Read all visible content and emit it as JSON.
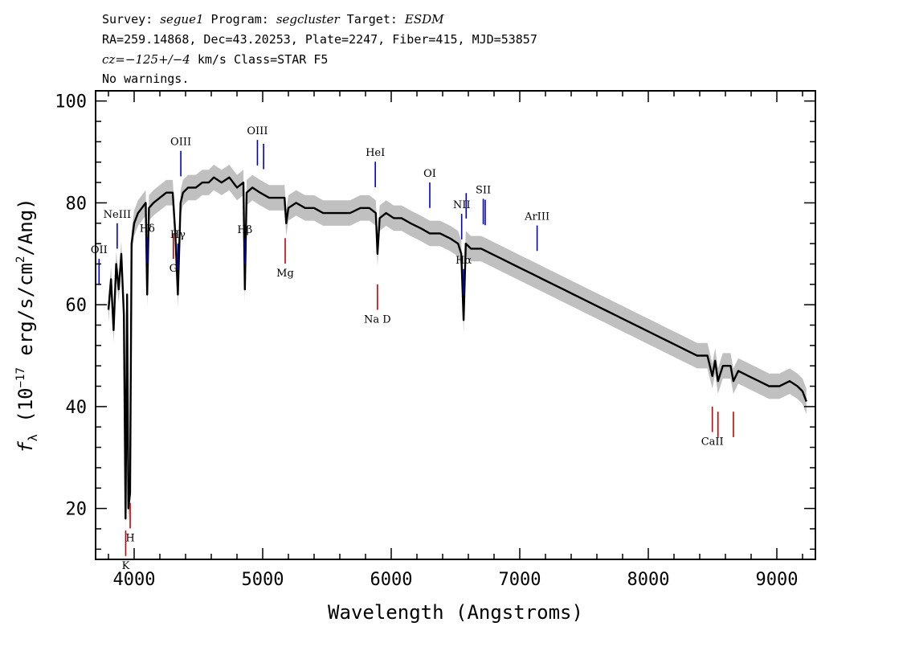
{
  "header": {
    "line1": {
      "survey_label": "Survey:",
      "survey": "segue1",
      "program_label": "Program:",
      "program": "segcluster",
      "target_label": "Target:",
      "target": "ESDM"
    },
    "line2": "RA=259.14868, Dec=43.20253, Plate=2247, Fiber=415, MJD=53857",
    "line3": {
      "cz": "cz=−125+/−4",
      "rest": " km/s Class=STAR F5"
    },
    "line4": "No warnings."
  },
  "chart_data": {
    "type": "line",
    "title": "",
    "xlabel": "Wavelength (Angstroms)",
    "ylabel": {
      "prefix": "f",
      "subscript": "λ",
      "unit_start": " (10",
      "exp1": "−17",
      "unit_mid": " erg/s/cm",
      "exp2": "2",
      "unit_end": "/Ang)"
    },
    "xlim": [
      3700,
      9300
    ],
    "ylim": [
      10,
      102
    ],
    "xticks": [
      4000,
      5000,
      6000,
      7000,
      8000,
      9000
    ],
    "yticks": [
      20,
      40,
      60,
      80,
      100
    ],
    "colors": {
      "flux": "#000000",
      "error_band": "#c0c0c0",
      "emission": "#0000cc",
      "absorption": "#cc0000"
    },
    "series": [
      {
        "kind": "flux",
        "x": [
          3800,
          3820,
          3840,
          3860,
          3880,
          3900,
          3920,
          3933,
          3945,
          3955,
          3968,
          3980,
          4000,
          4030,
          4060,
          4090,
          4101,
          4115,
          4150,
          4200,
          4250,
          4300,
          4320,
          4340,
          4361,
          4380,
          4420,
          4480,
          4530,
          4580,
          4620,
          4680,
          4740,
          4800,
          4850,
          4861,
          4875,
          4920,
          4980,
          5050,
          5120,
          5170,
          5183,
          5200,
          5260,
          5330,
          5400,
          5470,
          5540,
          5600,
          5680,
          5760,
          5830,
          5880,
          5893,
          5910,
          5960,
          6020,
          6080,
          6150,
          6230,
          6300,
          6380,
          6460,
          6520,
          6545,
          6563,
          6580,
          6620,
          6700,
          6780,
          6860,
          6940,
          7020,
          7100,
          7180,
          7260,
          7340,
          7420,
          7500,
          7580,
          7660,
          7740,
          7820,
          7900,
          7980,
          8060,
          8140,
          8220,
          8300,
          8380,
          8460,
          8498,
          8520,
          8542,
          8580,
          8640,
          8662,
          8700,
          8780,
          8860,
          8940,
          9020,
          9100,
          9160,
          9200,
          9230
        ],
        "y": [
          59,
          65,
          55,
          68,
          63,
          70,
          58,
          18,
          62,
          20,
          23,
          72,
          76,
          78,
          79,
          80,
          62,
          79,
          80,
          81,
          82,
          82,
          74,
          62,
          80,
          82,
          83,
          83,
          84,
          84,
          85,
          84,
          85,
          83,
          84,
          63,
          82,
          83,
          82,
          81,
          81,
          81,
          76,
          79,
          80,
          79,
          79,
          78,
          78,
          78,
          78,
          79,
          79,
          78,
          70,
          77,
          78,
          77,
          77,
          76,
          75,
          74,
          74,
          73,
          72,
          70,
          57,
          72,
          71,
          71,
          70,
          69,
          68,
          67,
          66,
          65,
          64,
          63,
          62,
          61,
          60,
          59,
          58,
          57,
          56,
          55,
          54,
          53,
          52,
          51,
          50,
          50,
          46,
          49,
          45,
          48,
          48,
          45,
          47,
          46,
          45,
          44,
          44,
          45,
          44,
          43,
          41
        ]
      }
    ],
    "lines": [
      {
        "name": "OII",
        "wl": 3727,
        "type": "emission"
      },
      {
        "name": "NeIII",
        "wl": 3868,
        "type": "emission"
      },
      {
        "name": "K",
        "wl": 3934,
        "type": "absorption"
      },
      {
        "name": "H",
        "wl": 3969,
        "type": "absorption"
      },
      {
        "name": "Hδ",
        "wl": 4102,
        "type": "emission"
      },
      {
        "name": "G",
        "wl": 4305,
        "type": "absorption"
      },
      {
        "name": "Hγ",
        "wl": 4340,
        "type": "emission"
      },
      {
        "name": "OIII",
        "wl": 4363,
        "type": "emission"
      },
      {
        "name": "Hβ",
        "wl": 4861,
        "type": "emission"
      },
      {
        "name": "OIII",
        "wl": 4959,
        "type": "emission"
      },
      {
        "name": "OIII",
        "wl": 5007,
        "type": "emission"
      },
      {
        "name": "Mg",
        "wl": 5175,
        "type": "absorption"
      },
      {
        "name": "HeI",
        "wl": 5876,
        "type": "emission"
      },
      {
        "name": "Na D",
        "wl": 5893,
        "type": "absorption"
      },
      {
        "name": "OI",
        "wl": 6300,
        "type": "emission"
      },
      {
        "name": "NII",
        "wl": 6548,
        "type": "emission"
      },
      {
        "name": "Hα",
        "wl": 6563,
        "type": "emission"
      },
      {
        "name": "NII",
        "wl": 6583,
        "type": "emission"
      },
      {
        "name": "SII",
        "wl": 6716,
        "type": "emission"
      },
      {
        "name": "SII",
        "wl": 6731,
        "type": "emission"
      },
      {
        "name": "ArIII",
        "wl": 7135,
        "type": "emission"
      },
      {
        "name": "CaII",
        "wl": 8498,
        "type": "absorption"
      },
      {
        "name": "CaII",
        "wl": 8542,
        "type": "absorption"
      },
      {
        "name": "CaII",
        "wl": 8662,
        "type": "absorption"
      }
    ]
  }
}
